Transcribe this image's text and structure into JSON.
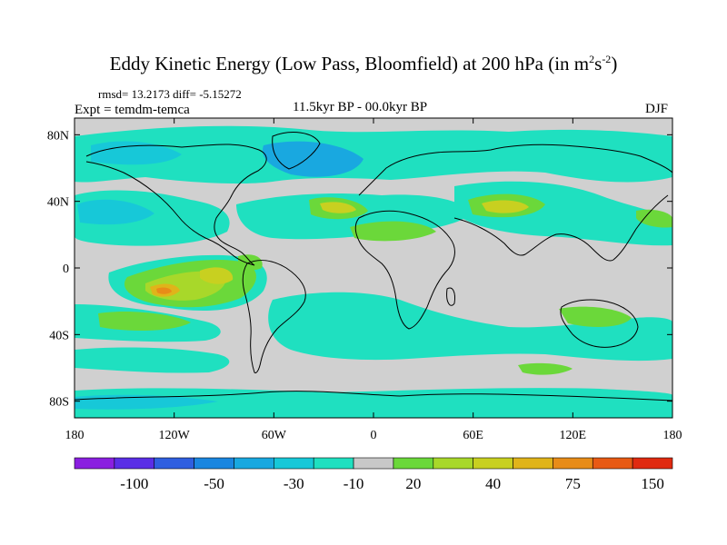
{
  "title": {
    "text": "Eddy Kinetic Energy (Low Pass, Bloomfield) at 200 hPa (in m",
    "sup1": "2",
    "mid": "s",
    "sup2": "-2",
    "end": ")"
  },
  "stats": "rmsd= 13.2173 diff= -5.15272",
  "expt": "Expt = temdm-temca",
  "center_label": "11.5kyr BP - 00.0kyr BP",
  "season": "DJF",
  "map": {
    "lat_ticks": [
      {
        "value": 80,
        "label": "80N"
      },
      {
        "value": 40,
        "label": "40N"
      },
      {
        "value": 0,
        "label": "0"
      },
      {
        "value": -40,
        "label": "40S"
      },
      {
        "value": -80,
        "label": "80S"
      }
    ],
    "lon_ticks": [
      {
        "value": -180,
        "label": "180"
      },
      {
        "value": -120,
        "label": "120W"
      },
      {
        "value": -60,
        "label": "60W"
      },
      {
        "value": 0,
        "label": "0"
      },
      {
        "value": 60,
        "label": "60E"
      },
      {
        "value": 120,
        "label": "120E"
      },
      {
        "value": 180,
        "label": "180"
      }
    ],
    "lon_range": [
      -180,
      180
    ],
    "lat_range": [
      -90,
      90
    ],
    "background_color": "#d0d0d0"
  },
  "colorbar": {
    "colors": [
      "#8a1fe0",
      "#5a2ee6",
      "#2f5fe0",
      "#1a86e0",
      "#19a8e0",
      "#17c8d8",
      "#1fe0c0",
      "#c8c8c8",
      "#6bd83a",
      "#a8d82a",
      "#c8d020",
      "#e0b41a",
      "#e88c18",
      "#e85a14",
      "#e02a10"
    ],
    "labels": [
      {
        "index": 1.5,
        "text": "-100"
      },
      {
        "index": 3.5,
        "text": "-50"
      },
      {
        "index": 5.5,
        "text": "-30"
      },
      {
        "index": 7,
        "text": "-10"
      },
      {
        "index": 8.5,
        "text": "20"
      },
      {
        "index": 10.5,
        "text": "40"
      },
      {
        "index": 12.5,
        "text": "75"
      },
      {
        "index": 14.5,
        "text": "150"
      }
    ]
  }
}
